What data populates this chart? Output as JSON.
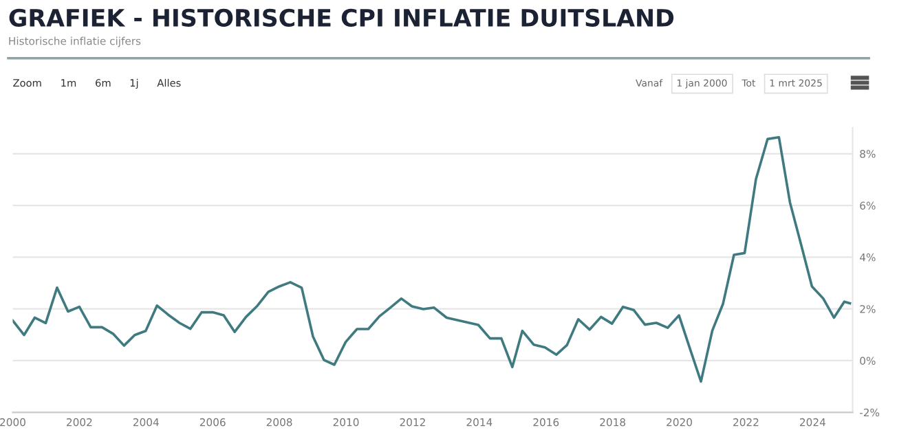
{
  "chart_data": {
    "type": "line",
    "title": "GRAFIEK - HISTORISCHE CPI INFLATIE DUITSLAND",
    "subtitle": "Historische inflatie cijfers",
    "annotations": [
      "Zoom",
      "1m",
      "6m",
      "1j",
      "Alles",
      "Vanaf",
      "1 jan 2000",
      "Tot",
      "1 mrt 2025"
    ],
    "series": [
      {
        "color": "#3f7a80",
        "x": [
          2000.0,
          2000.34,
          2000.66,
          2000.99,
          2001.33,
          2001.66,
          2002.0,
          2002.34,
          2002.68,
          2003.01,
          2003.34,
          2003.66,
          2003.99,
          2004.33,
          2004.66,
          2005.0,
          2005.33,
          2005.67,
          2006.0,
          2006.33,
          2006.66,
          2007.0,
          2007.34,
          2007.67,
          2008.0,
          2008.33,
          2008.67,
          2009.01,
          2009.34,
          2009.65,
          2009.99,
          2010.33,
          2010.67,
          2011.0,
          2011.33,
          2011.66,
          2011.98,
          2012.32,
          2012.64,
          2013.02,
          2013.97,
          2014.32,
          2014.66,
          2014.99,
          2015.29,
          2015.63,
          2015.97,
          2016.31,
          2016.63,
          2016.97,
          2017.31,
          2017.65,
          2017.98,
          2018.31,
          2018.63,
          2018.97,
          2019.31,
          2019.65,
          2019.99,
          2020.32,
          2020.65,
          2020.99,
          2021.31,
          2021.64,
          2021.96,
          2022.3,
          2022.65,
          2022.99,
          2023.32,
          2023.65,
          2023.98,
          2024.32,
          2024.64,
          2024.95,
          2025.12
        ],
        "values": [
          1.55,
          0.99,
          1.66,
          1.45,
          2.82,
          1.9,
          2.08,
          1.29,
          1.29,
          1.04,
          0.58,
          0.99,
          1.15,
          2.13,
          1.78,
          1.46,
          1.23,
          1.87,
          1.87,
          1.75,
          1.11,
          1.69,
          2.12,
          2.66,
          2.87,
          3.03,
          2.82,
          0.93,
          0.02,
          -0.16,
          0.72,
          1.22,
          1.22,
          1.71,
          2.05,
          2.4,
          2.1,
          1.99,
          2.05,
          1.66,
          1.38,
          0.86,
          0.86,
          -0.25,
          1.15,
          0.62,
          0.51,
          0.23,
          0.6,
          1.6,
          1.2,
          1.69,
          1.43,
          2.08,
          1.96,
          1.39,
          1.46,
          1.27,
          1.75,
          0.46,
          -0.81,
          1.16,
          2.19,
          4.09,
          4.16,
          7.02,
          8.57,
          8.64,
          6.12,
          4.51,
          2.87,
          2.4,
          1.66,
          2.28,
          2.22
        ]
      }
    ],
    "xlim": [
      2000,
      2025.2
    ],
    "ylim": [
      -2,
      9
    ],
    "xticks": [
      2000,
      2002,
      2004,
      2006,
      2008,
      2010,
      2012,
      2014,
      2016,
      2018,
      2020,
      2022,
      2024
    ],
    "yticks": [
      {
        "value": -2,
        "label": "-2%"
      },
      {
        "value": 0,
        "label": "0%"
      },
      {
        "value": 2,
        "label": "2%"
      },
      {
        "value": 4,
        "label": "4%"
      },
      {
        "value": 6,
        "label": "6%"
      },
      {
        "value": 8,
        "label": "8%"
      }
    ],
    "grid": "y",
    "legend": false,
    "marker": "none",
    "line_style": "solid"
  }
}
